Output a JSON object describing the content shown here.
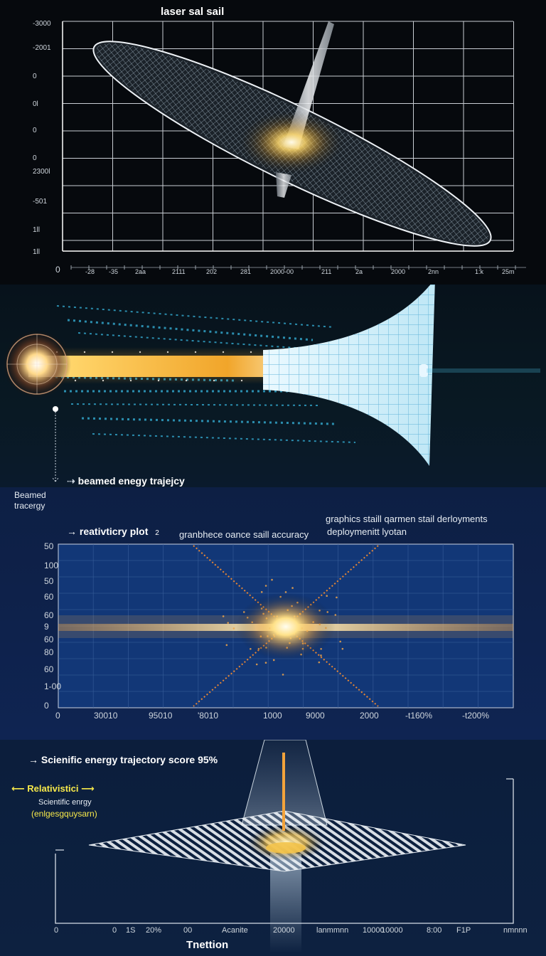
{
  "panel_top": {
    "title": "laser sal sail",
    "y_ticks": [
      "-3000",
      "-2001",
      "0",
      "0l",
      "0",
      "0",
      "2300l",
      "-501",
      "1ll",
      "1ll"
    ],
    "x_origin": "0",
    "x_ticks": [
      "-28",
      "-35",
      "2aa",
      "2111",
      "202",
      "281",
      "2000-00",
      "211",
      "2a",
      "2000",
      "2nn",
      "1:k",
      "25m"
    ]
  },
  "panel_beam": {
    "arrow_label": "beamed enegy trajejcy",
    "side_label_line1": "Beamed",
    "side_label_line2": "tracergy"
  },
  "panel_plot": {
    "arrow_label": "reativticry plot",
    "arrow_suffix": "2",
    "top_right_line1": "graphics staill qarmen stail derloyments",
    "subtitle_left": "granbhece oance saill accuracy",
    "subtitle_right": "deploymenitt lyotan",
    "y_ticks": [
      "50",
      "100",
      "50",
      "60",
      "60",
      "9",
      "60",
      "80",
      "60",
      "1-00",
      "0"
    ],
    "x_ticks": [
      "0",
      "30010",
      "95010",
      "'8010",
      "1000",
      "9000",
      "2000",
      "-t160%",
      "-t200%"
    ]
  },
  "panel_bottom": {
    "headline": "Scienific energy trajectory score 95%",
    "relativistic": "Relativistici",
    "sci_line1": "Scientific enrgy",
    "sci_line2": "(enlgesgquysarn)",
    "x_ticks": [
      "0",
      "0",
      "1S",
      "20%",
      "00",
      "Acanite",
      "20000",
      "lanmmnn",
      "10000",
      "10000",
      "8:00",
      "F1P",
      "nmnnn"
    ],
    "xlabel": "Tnettion"
  },
  "colors": {
    "grid": "#c8cdd3",
    "sail_outline": "#e9eef3",
    "beam_yellow": "#f5b638",
    "beam_cyan": "#37b6de",
    "plot_bg": "#10306e",
    "plot_orange": "#e98734",
    "label_yellow": "#f6e84a"
  }
}
